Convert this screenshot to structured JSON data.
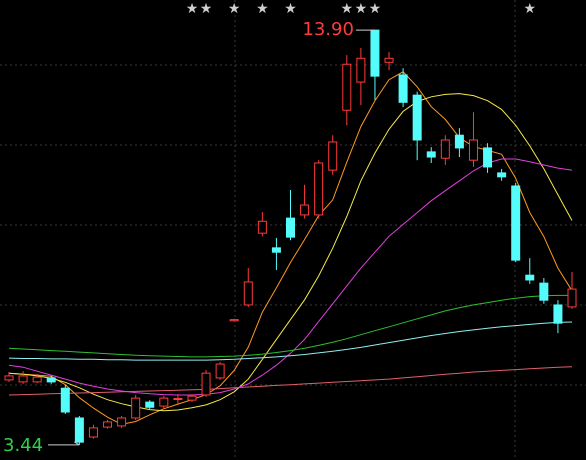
{
  "chart_data": {
    "type": "candlestick",
    "ylim": [
      3.06,
      14.66
    ],
    "up_color": "#ff3b3b",
    "down_color": "#54fcfc",
    "open": [
      5.08,
      5.03,
      5.03,
      5.13,
      4.87,
      4.12,
      3.64,
      3.89,
      3.92,
      4.12,
      4.52,
      4.42,
      4.6,
      4.57,
      4.7,
      5.13,
      6.57,
      6.97,
      8.78,
      8.41,
      9.16,
      9.24,
      9.24,
      10.37,
      11.88,
      12.59,
      13.9,
      13.09,
      12.77,
      12.26,
      10.83,
      10.67,
      11.25,
      10.62,
      10.93,
      10.3,
      9.97,
      7.72,
      7.52,
      6.97,
      6.92
    ],
    "high": [
      5.28,
      5.3,
      5.23,
      5.18,
      4.95,
      4.17,
      3.95,
      4.07,
      4.17,
      4.7,
      4.57,
      4.67,
      4.72,
      4.72,
      5.33,
      5.53,
      6.62,
      7.9,
      9.31,
      8.66,
      9.87,
      10.0,
      10.62,
      11.25,
      13.27,
      13.45,
      13.9,
      13.35,
      12.94,
      12.35,
      10.95,
      11.25,
      11.43,
      11.83,
      11.05,
      10.4,
      10.05,
      8.15,
      7.65,
      7.09,
      7.8
    ],
    "low": [
      5.03,
      4.98,
      5.0,
      4.98,
      4.22,
      3.44,
      3.6,
      3.85,
      3.87,
      4.07,
      4.34,
      4.37,
      4.49,
      4.52,
      4.65,
      5.08,
      6.55,
      6.92,
      8.7,
      7.85,
      8.6,
      9.15,
      9.15,
      10.25,
      11.5,
      12.01,
      12.14,
      12.89,
      11.96,
      10.62,
      10.55,
      10.5,
      10.7,
      10.45,
      10.3,
      10.1,
      8.05,
      7.5,
      7.0,
      6.26,
      6.87
    ],
    "close": [
      5.18,
      5.18,
      5.15,
      5.03,
      4.27,
      3.51,
      3.87,
      4.02,
      4.12,
      4.62,
      4.39,
      4.62,
      4.61,
      4.67,
      5.25,
      5.48,
      6.6,
      7.55,
      9.08,
      8.3,
      8.68,
      9.49,
      10.55,
      11.08,
      13.04,
      13.19,
      12.74,
      13.19,
      12.08,
      11.13,
      10.7,
      11.13,
      10.93,
      11.13,
      10.45,
      10.2,
      8.1,
      7.6,
      7.09,
      6.51,
      7.37
    ],
    "series": [
      {
        "color": "#ff9a1f",
        "values": [
          5.25,
          5.22,
          5.2,
          5.17,
          4.96,
          4.63,
          4.37,
          4.14,
          3.96,
          4.03,
          4.2,
          4.35,
          4.47,
          4.58,
          4.71,
          4.93,
          5.32,
          5.91,
          6.79,
          7.4,
          8.04,
          8.62,
          9.22,
          9.62,
          10.57,
          11.47,
          12.12,
          12.65,
          12.85,
          12.47,
          11.97,
          11.65,
          11.19,
          10.96,
          10.87,
          10.77,
          10.16,
          9.3,
          8.69,
          7.9,
          7.33
        ]
      },
      {
        "color": "#f5e94a",
        "values": [
          5.25,
          5.22,
          5.18,
          5.12,
          5.02,
          4.88,
          4.72,
          4.58,
          4.48,
          4.4,
          4.33,
          4.3,
          4.32,
          4.38,
          4.45,
          4.58,
          4.78,
          5.1,
          5.6,
          6.1,
          6.6,
          7.1,
          7.7,
          8.4,
          9.2,
          10.1,
          10.8,
          11.4,
          11.85,
          12.1,
          12.22,
          12.28,
          12.3,
          12.25,
          12.12,
          11.9,
          11.5,
          10.98,
          10.4,
          9.75,
          9.1
        ]
      },
      {
        "color": "#e040e0",
        "values": [
          5.45,
          5.4,
          5.3,
          5.2,
          5.1,
          5.0,
          4.92,
          4.85,
          4.8,
          4.76,
          4.73,
          4.71,
          4.7,
          4.7,
          4.72,
          4.76,
          4.85,
          4.98,
          5.2,
          5.45,
          5.75,
          6.1,
          6.55,
          7.0,
          7.45,
          7.9,
          8.3,
          8.7,
          9.0,
          9.3,
          9.6,
          9.85,
          10.1,
          10.35,
          10.55,
          10.65,
          10.65,
          10.58,
          10.5,
          10.42,
          10.37
        ]
      },
      {
        "color": "#2fbf2f",
        "values": [
          5.88,
          5.86,
          5.84,
          5.82,
          5.8,
          5.78,
          5.76,
          5.74,
          5.72,
          5.7,
          5.69,
          5.68,
          5.67,
          5.66,
          5.66,
          5.67,
          5.68,
          5.7,
          5.73,
          5.77,
          5.82,
          5.88,
          5.95,
          6.03,
          6.12,
          6.22,
          6.32,
          6.42,
          6.52,
          6.62,
          6.72,
          6.82,
          6.9,
          6.97,
          7.03,
          7.09,
          7.14,
          7.18,
          7.2,
          7.21,
          7.21
        ]
      },
      {
        "color": "#8ff0f0",
        "values": [
          5.63,
          5.62,
          5.62,
          5.61,
          5.61,
          5.6,
          5.6,
          5.59,
          5.59,
          5.58,
          5.58,
          5.58,
          5.58,
          5.58,
          5.58,
          5.59,
          5.6,
          5.62,
          5.64,
          5.66,
          5.69,
          5.72,
          5.76,
          5.8,
          5.85,
          5.9,
          5.96,
          6.02,
          6.08,
          6.14,
          6.2,
          6.25,
          6.3,
          6.34,
          6.38,
          6.42,
          6.45,
          6.48,
          6.51,
          6.53,
          6.54
        ]
      },
      {
        "color": "#e0606a",
        "values": [
          4.7,
          4.71,
          4.72,
          4.73,
          4.74,
          4.75,
          4.76,
          4.77,
          4.78,
          4.79,
          4.8,
          4.81,
          4.82,
          4.83,
          4.84,
          4.86,
          4.88,
          4.9,
          4.92,
          4.94,
          4.96,
          4.98,
          5.0,
          5.02,
          5.04,
          5.06,
          5.08,
          5.1,
          5.13,
          5.16,
          5.19,
          5.22,
          5.25,
          5.28,
          5.3,
          5.32,
          5.34,
          5.36,
          5.38,
          5.4,
          5.41
        ]
      }
    ],
    "stars": [
      null,
      null,
      null,
      null,
      null,
      null,
      null,
      null,
      null,
      null,
      null,
      null,
      null,
      "★",
      "★",
      null,
      "★",
      null,
      "★",
      null,
      "★",
      null,
      null,
      null,
      "★",
      "★",
      "★",
      null,
      null,
      null,
      null,
      null,
      null,
      null,
      null,
      null,
      null,
      "★",
      null,
      null,
      null
    ],
    "high_label": {
      "value": 13.9,
      "label": "13.90",
      "color": "#ff3b3b"
    },
    "low_label": {
      "value": 3.44,
      "label": "3.44",
      "color": "#2fd04a"
    }
  }
}
